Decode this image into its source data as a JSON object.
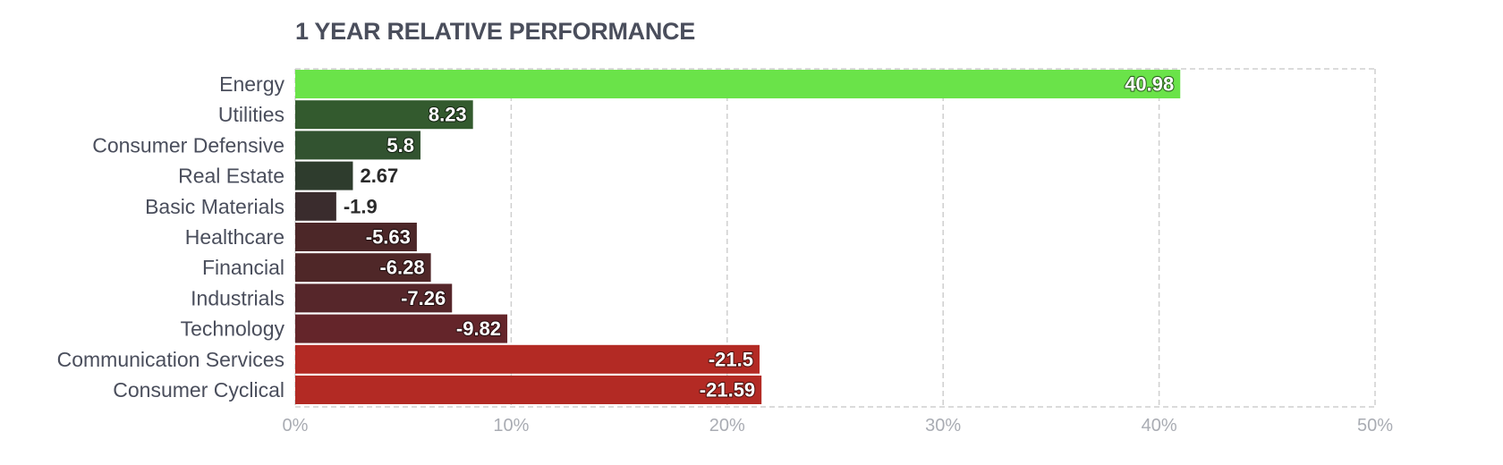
{
  "chart_data": {
    "type": "bar",
    "orientation": "horizontal",
    "title": "1 YEAR RELATIVE PERFORMANCE",
    "xlabel": "",
    "ylabel": "",
    "xlim": [
      0,
      50
    ],
    "x_ticks": [
      "0%",
      "10%",
      "20%",
      "30%",
      "40%",
      "50%"
    ],
    "grid": true,
    "bar_length": "absolute value",
    "categories": [
      "Energy",
      "Utilities",
      "Consumer Defensive",
      "Real Estate",
      "Basic Materials",
      "Healthcare",
      "Financial",
      "Industrials",
      "Technology",
      "Communication Services",
      "Consumer Cyclical"
    ],
    "values": [
      40.98,
      8.23,
      5.8,
      2.67,
      -1.9,
      -5.63,
      -6.28,
      -7.26,
      -9.82,
      -21.5,
      -21.59
    ],
    "value_labels": [
      "40.98",
      "8.23",
      "5.8",
      "2.67",
      "-1.9",
      "-5.63",
      "-6.28",
      "-7.26",
      "-9.82",
      "-21.5",
      "-21.59"
    ],
    "colors": [
      "#6ae349",
      "#335a2e",
      "#325330",
      "#2e3c2d",
      "#3a2c2d",
      "#4c2728",
      "#4f2728",
      "#56262a",
      "#64252a",
      "#b32a24",
      "#b32a24"
    ]
  }
}
